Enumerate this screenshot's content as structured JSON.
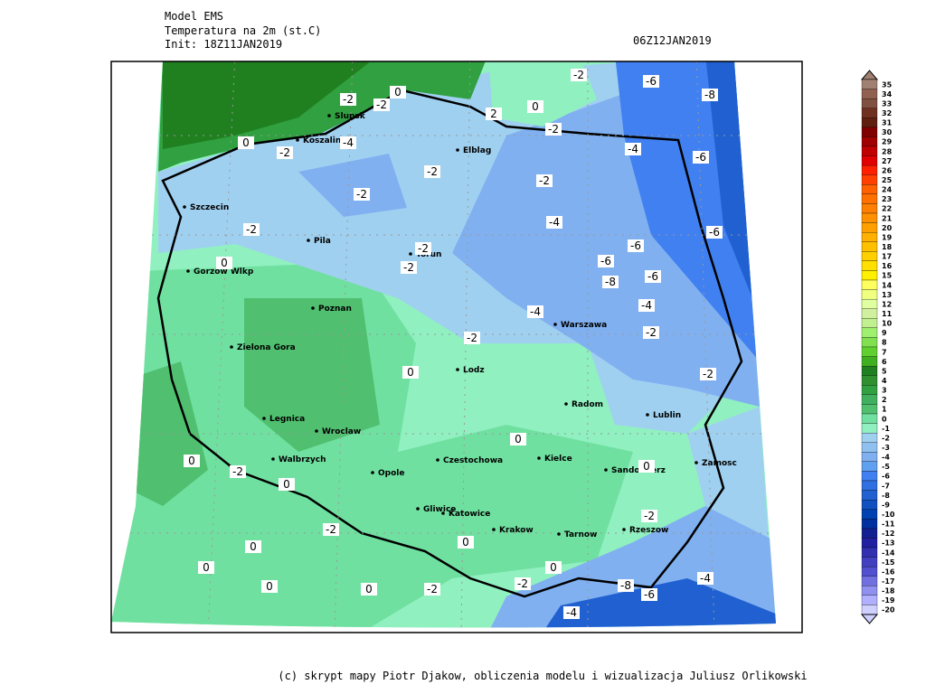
{
  "header": {
    "lines": [
      "Model EMS",
      "Temperatura na 2m (st.C)",
      "Init: 18Z11JAN2019"
    ],
    "valid_time": "06Z12JAN2019"
  },
  "map": {
    "cities": [
      "Slupsk",
      "Koszalin",
      "Elblag",
      "Szczecin",
      "Pila",
      "Torun",
      "Gorzow Wlkp",
      "Poznan",
      "Warszawa",
      "Zielona Gora",
      "Lodz",
      "Radom",
      "Lublin",
      "Legnica",
      "Wroclaw",
      "Walbrzych",
      "Opole",
      "Czestochowa",
      "Kielce",
      "Sandomierz",
      "Zamosc",
      "Gliwice",
      "Katowice",
      "Krakow",
      "Tarnow",
      "Rzeszow"
    ],
    "contour_labels": [
      "-2",
      "-6",
      "-8",
      "0",
      "-2",
      "-2",
      "2",
      "0",
      "-2",
      "0",
      "-2",
      "-4",
      "-4",
      "-6",
      "-2",
      "-2",
      "-2",
      "-4",
      "-2",
      "-6",
      "-2",
      "-6",
      "-6",
      "-2",
      "0",
      "-8",
      "-6",
      "-4",
      "-4",
      "-2",
      "-2",
      "0",
      "-2",
      "0",
      "-2",
      "0",
      "0",
      "0",
      "-2",
      "-2",
      "0",
      "0",
      "0",
      "0",
      "-2",
      "-2",
      "-8",
      "-4",
      "0",
      "0",
      "-6",
      "-4"
    ]
  },
  "colorbar": {
    "levels": [
      35,
      34,
      33,
      32,
      31,
      30,
      29,
      28,
      27,
      26,
      25,
      24,
      23,
      22,
      21,
      20,
      19,
      18,
      17,
      16,
      15,
      14,
      13,
      12,
      11,
      10,
      9,
      8,
      7,
      6,
      5,
      4,
      3,
      2,
      1,
      0,
      -1,
      -2,
      -3,
      -4,
      -5,
      -6,
      -7,
      -8,
      -9,
      -10,
      -11,
      -12,
      -13,
      -14,
      -15,
      -16,
      -17,
      -18,
      -19,
      -20
    ],
    "colors": [
      "#a08070",
      "#906050",
      "#805040",
      "#703020",
      "#602010",
      "#800000",
      "#a00000",
      "#c00000",
      "#e00000",
      "#ff2000",
      "#ff4000",
      "#ff6000",
      "#ff7000",
      "#ff8000",
      "#ff9000",
      "#ffa000",
      "#ffb000",
      "#ffc000",
      "#ffd000",
      "#ffe000",
      "#fff000",
      "#ffff60",
      "#f0ff80",
      "#e0ffa0",
      "#d0f0a0",
      "#c0f090",
      "#a0f070",
      "#80e050",
      "#60d030",
      "#40b020",
      "#208020",
      "#309030",
      "#30a040",
      "#40b060",
      "#50c070",
      "#70e0a0",
      "#90f0c0",
      "#a0d0f0",
      "#90c0f0",
      "#80b0f0",
      "#60a0f0",
      "#4080f0",
      "#3070e0",
      "#2060d0",
      "#1050c0",
      "#0040b0",
      "#0030a0",
      "#102090",
      "#2020a0",
      "#3030b0",
      "#4040c0",
      "#5050d0",
      "#7070e0",
      "#9090f0",
      "#b0b0ff",
      "#d0d0ff"
    ]
  },
  "footer": "(c) skrypt mapy Piotr Djakow, obliczenia modelu i wizualizacja Juliusz Orlikowski"
}
